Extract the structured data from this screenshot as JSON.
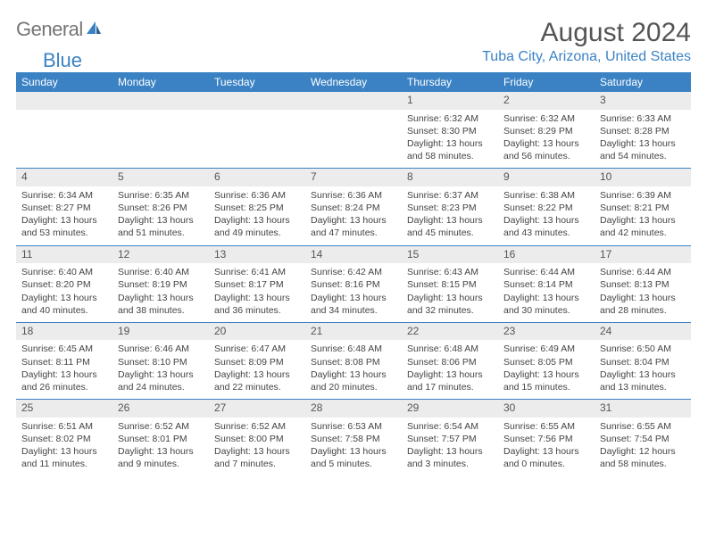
{
  "logo": {
    "text1": "General",
    "text2": "Blue"
  },
  "title": "August 2024",
  "location": "Tuba City, Arizona, United States",
  "colors": {
    "header_bg": "#3b82c4",
    "header_text": "#ffffff",
    "daynum_bg": "#ececec",
    "body_text": "#444444",
    "title_text": "#555555",
    "logo_gray": "#757575",
    "logo_blue": "#3b82c4"
  },
  "day_names": [
    "Sunday",
    "Monday",
    "Tuesday",
    "Wednesday",
    "Thursday",
    "Friday",
    "Saturday"
  ],
  "weeks": [
    [
      null,
      null,
      null,
      null,
      {
        "n": "1",
        "sr": "6:32 AM",
        "ss": "8:30 PM",
        "dl": "13 hours and 58 minutes."
      },
      {
        "n": "2",
        "sr": "6:32 AM",
        "ss": "8:29 PM",
        "dl": "13 hours and 56 minutes."
      },
      {
        "n": "3",
        "sr": "6:33 AM",
        "ss": "8:28 PM",
        "dl": "13 hours and 54 minutes."
      }
    ],
    [
      {
        "n": "4",
        "sr": "6:34 AM",
        "ss": "8:27 PM",
        "dl": "13 hours and 53 minutes."
      },
      {
        "n": "5",
        "sr": "6:35 AM",
        "ss": "8:26 PM",
        "dl": "13 hours and 51 minutes."
      },
      {
        "n": "6",
        "sr": "6:36 AM",
        "ss": "8:25 PM",
        "dl": "13 hours and 49 minutes."
      },
      {
        "n": "7",
        "sr": "6:36 AM",
        "ss": "8:24 PM",
        "dl": "13 hours and 47 minutes."
      },
      {
        "n": "8",
        "sr": "6:37 AM",
        "ss": "8:23 PM",
        "dl": "13 hours and 45 minutes."
      },
      {
        "n": "9",
        "sr": "6:38 AM",
        "ss": "8:22 PM",
        "dl": "13 hours and 43 minutes."
      },
      {
        "n": "10",
        "sr": "6:39 AM",
        "ss": "8:21 PM",
        "dl": "13 hours and 42 minutes."
      }
    ],
    [
      {
        "n": "11",
        "sr": "6:40 AM",
        "ss": "8:20 PM",
        "dl": "13 hours and 40 minutes."
      },
      {
        "n": "12",
        "sr": "6:40 AM",
        "ss": "8:19 PM",
        "dl": "13 hours and 38 minutes."
      },
      {
        "n": "13",
        "sr": "6:41 AM",
        "ss": "8:17 PM",
        "dl": "13 hours and 36 minutes."
      },
      {
        "n": "14",
        "sr": "6:42 AM",
        "ss": "8:16 PM",
        "dl": "13 hours and 34 minutes."
      },
      {
        "n": "15",
        "sr": "6:43 AM",
        "ss": "8:15 PM",
        "dl": "13 hours and 32 minutes."
      },
      {
        "n": "16",
        "sr": "6:44 AM",
        "ss": "8:14 PM",
        "dl": "13 hours and 30 minutes."
      },
      {
        "n": "17",
        "sr": "6:44 AM",
        "ss": "8:13 PM",
        "dl": "13 hours and 28 minutes."
      }
    ],
    [
      {
        "n": "18",
        "sr": "6:45 AM",
        "ss": "8:11 PM",
        "dl": "13 hours and 26 minutes."
      },
      {
        "n": "19",
        "sr": "6:46 AM",
        "ss": "8:10 PM",
        "dl": "13 hours and 24 minutes."
      },
      {
        "n": "20",
        "sr": "6:47 AM",
        "ss": "8:09 PM",
        "dl": "13 hours and 22 minutes."
      },
      {
        "n": "21",
        "sr": "6:48 AM",
        "ss": "8:08 PM",
        "dl": "13 hours and 20 minutes."
      },
      {
        "n": "22",
        "sr": "6:48 AM",
        "ss": "8:06 PM",
        "dl": "13 hours and 17 minutes."
      },
      {
        "n": "23",
        "sr": "6:49 AM",
        "ss": "8:05 PM",
        "dl": "13 hours and 15 minutes."
      },
      {
        "n": "24",
        "sr": "6:50 AM",
        "ss": "8:04 PM",
        "dl": "13 hours and 13 minutes."
      }
    ],
    [
      {
        "n": "25",
        "sr": "6:51 AM",
        "ss": "8:02 PM",
        "dl": "13 hours and 11 minutes."
      },
      {
        "n": "26",
        "sr": "6:52 AM",
        "ss": "8:01 PM",
        "dl": "13 hours and 9 minutes."
      },
      {
        "n": "27",
        "sr": "6:52 AM",
        "ss": "8:00 PM",
        "dl": "13 hours and 7 minutes."
      },
      {
        "n": "28",
        "sr": "6:53 AM",
        "ss": "7:58 PM",
        "dl": "13 hours and 5 minutes."
      },
      {
        "n": "29",
        "sr": "6:54 AM",
        "ss": "7:57 PM",
        "dl": "13 hours and 3 minutes."
      },
      {
        "n": "30",
        "sr": "6:55 AM",
        "ss": "7:56 PM",
        "dl": "13 hours and 0 minutes."
      },
      {
        "n": "31",
        "sr": "6:55 AM",
        "ss": "7:54 PM",
        "dl": "12 hours and 58 minutes."
      }
    ]
  ],
  "labels": {
    "sunrise": "Sunrise:",
    "sunset": "Sunset:",
    "daylight": "Daylight:"
  }
}
